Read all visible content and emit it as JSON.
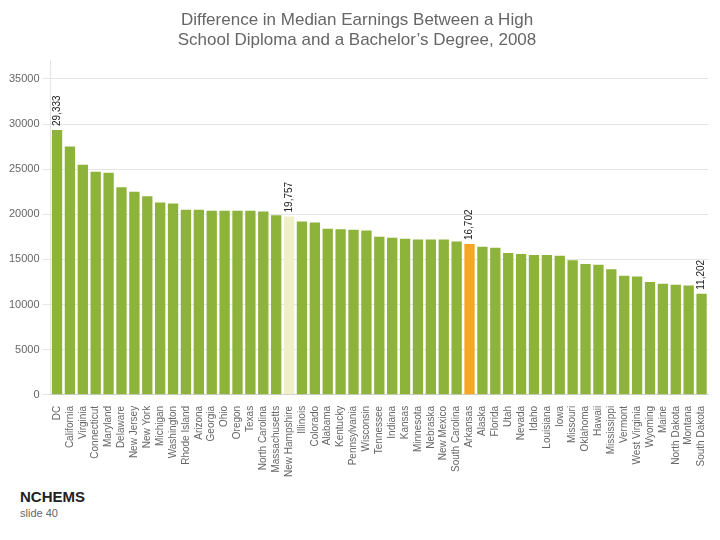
{
  "chart_data": {
    "type": "bar",
    "title": "Difference in Median Earnings Between a High\nSchool Diploma and a Bachelor’s Degree, 2008",
    "categories": [
      "DC",
      "California",
      "Virginia",
      "Connecticut",
      "Maryland",
      "Delaware",
      "New Jersey",
      "New York",
      "Michigan",
      "Washington",
      "Rhode Island",
      "Arizona",
      "Georgia",
      "Ohio",
      "Oregon",
      "Texas",
      "North Carolina",
      "Massachusetts",
      "New Hampshire",
      "Illinois",
      "Colorado",
      "Alabama",
      "Kentucky",
      "Pennsylvania",
      "Wisconsin",
      "Tennessee",
      "Indiana",
      "Kansas",
      "Minnesota",
      "Nebraska",
      "New Mexico",
      "South Carolina",
      "Arkansas",
      "Alaska",
      "Florida",
      "Utah",
      "Nevada",
      "Idaho",
      "Louisiana",
      "Iowa",
      "Missouri",
      "Oklahoma",
      "Hawaii",
      "Mississippi",
      "Vermont",
      "West Virginia",
      "Wyoming",
      "Maine",
      "North Dakota",
      "Montana",
      "South Dakota"
    ],
    "values": [
      29333,
      27500,
      25500,
      24700,
      24600,
      23000,
      22500,
      22000,
      21300,
      21200,
      20500,
      20500,
      20400,
      20400,
      20400,
      20400,
      20300,
      19900,
      19757,
      19200,
      19100,
      18400,
      18350,
      18300,
      18200,
      17500,
      17400,
      17300,
      17200,
      17200,
      17200,
      17000,
      16702,
      16400,
      16300,
      15700,
      15600,
      15500,
      15500,
      15400,
      14900,
      14500,
      14400,
      13900,
      13200,
      13100,
      12500,
      12300,
      12200,
      12100,
      11202
    ],
    "colors": [
      "#8db33a",
      "#8db33a",
      "#8db33a",
      "#8db33a",
      "#8db33a",
      "#8db33a",
      "#8db33a",
      "#8db33a",
      "#8db33a",
      "#8db33a",
      "#8db33a",
      "#8db33a",
      "#8db33a",
      "#8db33a",
      "#8db33a",
      "#8db33a",
      "#8db33a",
      "#8db33a",
      "#f0f0c8",
      "#8db33a",
      "#8db33a",
      "#8db33a",
      "#8db33a",
      "#8db33a",
      "#8db33a",
      "#8db33a",
      "#8db33a",
      "#8db33a",
      "#8db33a",
      "#8db33a",
      "#8db33a",
      "#8db33a",
      "#f5a623",
      "#8db33a",
      "#8db33a",
      "#8db33a",
      "#8db33a",
      "#8db33a",
      "#8db33a",
      "#8db33a",
      "#8db33a",
      "#8db33a",
      "#8db33a",
      "#8db33a",
      "#8db33a",
      "#8db33a",
      "#8db33a",
      "#8db33a",
      "#8db33a",
      "#8db33a",
      "#8db33a"
    ],
    "annotations": [
      {
        "category": "DC",
        "text": "29,333"
      },
      {
        "category": "New Hampshire",
        "text": "19,757"
      },
      {
        "category": "Arkansas",
        "text": "16,702"
      },
      {
        "category": "South Dakota",
        "text": "11,202"
      },
      {
        "text": "NCHEMS"
      },
      {
        "text": "slide 40"
      }
    ],
    "ylim": [
      0,
      37000
    ],
    "yticks": [
      0,
      5000,
      10000,
      15000,
      20000,
      25000,
      30000,
      35000
    ],
    "grid": true
  }
}
